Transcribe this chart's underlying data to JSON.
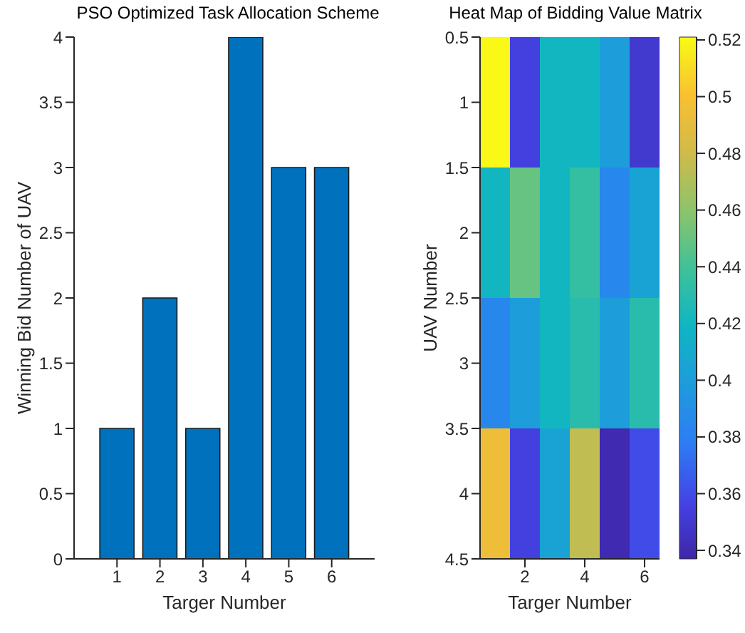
{
  "chart_data": [
    {
      "type": "bar",
      "title": "PSO Optimized Task Allocation Scheme",
      "xlabel": "Targer Number",
      "ylabel": "Winning Bid Number of UAV",
      "x": [
        1,
        2,
        3,
        4,
        5,
        6
      ],
      "values": [
        1,
        2,
        1,
        4,
        3,
        3
      ],
      "color": "#0072bd",
      "xlim": [
        0,
        7
      ],
      "xticks": [
        1,
        2,
        3,
        4,
        5,
        6
      ],
      "ylim": [
        0,
        4
      ],
      "yticks": [
        0,
        0.5,
        1,
        1.5,
        2,
        2.5,
        3,
        3.5,
        4
      ]
    },
    {
      "type": "heatmap",
      "title": "Heat Map of Bidding Value Matrix",
      "xlabel": "Targer Number",
      "ylabel": "UAV Number",
      "cells": [
        [
          0.52,
          0.355,
          0.42,
          0.42,
          0.4,
          0.35
        ],
        [
          0.42,
          0.45,
          0.42,
          0.435,
          0.385,
          0.405
        ],
        [
          0.385,
          0.4,
          0.42,
          0.43,
          0.4,
          0.43
        ],
        [
          0.495,
          0.355,
          0.405,
          0.475,
          0.34,
          0.36
        ]
      ],
      "xlim": [
        0.5,
        6.5
      ],
      "xticks": [
        2,
        4,
        6
      ],
      "ylim": [
        4.5,
        0.5
      ],
      "yticks": [
        0.5,
        1,
        1.5,
        2,
        2.5,
        3,
        3.5,
        4,
        4.5
      ],
      "clim": [
        0.337,
        0.521
      ],
      "cticks": [
        0.34,
        0.36,
        0.38,
        0.4,
        0.42,
        0.44,
        0.46,
        0.48,
        0.5,
        0.52
      ]
    }
  ]
}
